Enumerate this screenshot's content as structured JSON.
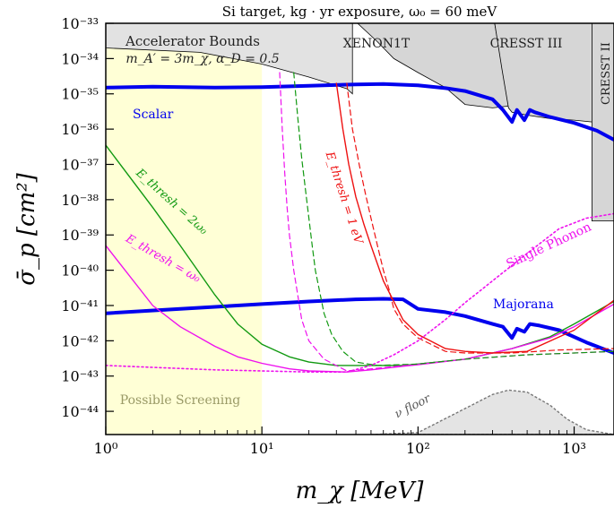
{
  "chart_data": {
    "type": "line",
    "title": "Si target, kg · yr exposure,  ω₀ = 60 meV",
    "xlabel": "m_χ  [MeV]",
    "ylabel": "σ̄_p  [cm²]",
    "xscale": "log",
    "yscale": "log",
    "xlim": [
      1,
      1800
    ],
    "ylim": [
      2.2e-45,
      1e-33
    ],
    "x_ticks": [
      {
        "value": 1,
        "label": "10⁰"
      },
      {
        "value": 10,
        "label": "10¹"
      },
      {
        "value": 100,
        "label": "10²"
      },
      {
        "value": 1000,
        "label": "10³"
      }
    ],
    "y_ticks": [
      {
        "value": 1e-33,
        "label": "10⁻³³"
      },
      {
        "value": 1e-34,
        "label": "10⁻³⁴"
      },
      {
        "value": 1e-35,
        "label": "10⁻³⁵"
      },
      {
        "value": 1e-36,
        "label": "10⁻³⁶"
      },
      {
        "value": 1e-37,
        "label": "10⁻³⁷"
      },
      {
        "value": 1e-38,
        "label": "10⁻³⁸"
      },
      {
        "value": 1e-39,
        "label": "10⁻³⁹"
      },
      {
        "value": 1e-40,
        "label": "10⁻⁴⁰"
      },
      {
        "value": 1e-41,
        "label": "10⁻⁴¹"
      },
      {
        "value": 1e-42,
        "label": "10⁻⁴²"
      },
      {
        "value": 1e-43,
        "label": "10⁻⁴³"
      },
      {
        "value": 1e-44,
        "label": "10⁻⁴⁴"
      }
    ],
    "regions": [
      {
        "name": "Accelerator Bounds",
        "sublabel": "m_A′ = 3m_χ, α_D = 0.5",
        "fill": "#e2e2e2",
        "x": [
          1,
          1,
          4,
          10,
          20,
          35,
          38,
          38,
          1
        ],
        "y": [
          1e-33,
          2e-34,
          1.5e-34,
          7e-35,
          3e-35,
          1.4e-35,
          1e-35,
          1e-33,
          1e-33
        ]
      },
      {
        "name": "XENON1T",
        "fill": "#d6d6d6",
        "x": [
          41,
          55,
          70,
          100,
          150,
          200,
          300,
          380,
          340,
          310,
          41
        ],
        "y": [
          1e-33,
          3e-34,
          1e-34,
          4e-35,
          1.5e-35,
          5e-36,
          4e-36,
          4.5e-36,
          1e-34,
          1e-33,
          1e-33
        ]
      },
      {
        "name": "CRESST III",
        "fill": "#d6d6d6",
        "x": [
          310,
          345,
          380,
          400,
          500,
          700,
          1000,
          1300,
          1400,
          1800,
          1800,
          310
        ],
        "y": [
          1e-33,
          5e-35,
          4e-36,
          3e-36,
          2.5e-36,
          2e-36,
          1.8e-36,
          1.6e-36,
          8e-39,
          2.5e-39,
          1e-33,
          1e-33
        ]
      },
      {
        "name": "CRESST II",
        "fill": "#d6d6d6",
        "x": [
          1300,
          1800,
          1800,
          1300
        ],
        "y": [
          1e-33,
          1e-33,
          2.5e-39,
          2.5e-39
        ]
      },
      {
        "name": "Possible Screening",
        "fill": "#ffffd6",
        "x": [
          1,
          10,
          10,
          1
        ],
        "y": [
          2.2e-45,
          2.2e-45,
          1e-33,
          1e-33
        ]
      },
      {
        "name": "ν floor",
        "fill": "#e4e4e4",
        "x": [
          50,
          100,
          200,
          300,
          380,
          500,
          700,
          900,
          1200,
          1800,
          1800,
          50
        ],
        "y": [
          2.2e-45,
          2.5e-45,
          1.2e-44,
          3e-44,
          4e-44,
          3.5e-44,
          1.5e-44,
          6e-45,
          3e-45,
          2.2e-45,
          2.2e-45,
          2.2e-45
        ]
      }
    ],
    "series": [
      {
        "name": "Scalar",
        "color": "#0000ee",
        "dash": "solid",
        "width": 4,
        "x": [
          1,
          2,
          5,
          10,
          20,
          40,
          60,
          100,
          150,
          200,
          300,
          350,
          400,
          430,
          480,
          520,
          560,
          700,
          1000,
          1400,
          1800
        ],
        "y": [
          1.5e-35,
          1.6e-35,
          1.5e-35,
          1.55e-35,
          1.7e-35,
          1.85e-35,
          1.9e-35,
          1.75e-35,
          1.45e-35,
          1.2e-35,
          7e-36,
          3.5e-36,
          1.6e-36,
          3.5e-36,
          1.8e-36,
          3.5e-36,
          3e-36,
          2.2e-36,
          1.5e-36,
          9e-37,
          5e-37
        ]
      },
      {
        "name": "Majorana",
        "color": "#0000ee",
        "dash": "solid",
        "width": 4,
        "x": [
          1,
          3,
          10,
          20,
          40,
          60,
          80,
          100,
          150,
          200,
          300,
          350,
          400,
          430,
          480,
          520,
          600,
          800,
          1200,
          1800
        ],
        "y": [
          6e-42,
          8e-42,
          1.1e-41,
          1.3e-41,
          1.5e-41,
          1.55e-41,
          1.5e-41,
          8e-42,
          6.5e-42,
          5e-42,
          3e-42,
          2.5e-42,
          1.2e-42,
          2.2e-42,
          1.8e-42,
          3e-42,
          2.7e-42,
          2e-42,
          9e-43,
          4.5e-43
        ]
      },
      {
        "name": "E_thresh = 2ω₀",
        "color": "#119911",
        "dash": "solid",
        "width": 1.4,
        "x": [
          1,
          2,
          3,
          5,
          7,
          10,
          15,
          20,
          30,
          50,
          80,
          100,
          200,
          400,
          700,
          1000,
          1800
        ],
        "y": [
          3.5e-37,
          6e-39,
          5e-40,
          2e-41,
          3e-42,
          8e-43,
          3.5e-43,
          2.5e-43,
          2e-43,
          2e-43,
          2e-43,
          2.2e-43,
          3e-43,
          6e-43,
          1.3e-42,
          3e-42,
          1.3e-41
        ]
      },
      {
        "name": "E_thresh = ω₀",
        "color": "#ee11ee",
        "dash": "solid",
        "width": 1.4,
        "x": [
          1,
          2,
          3,
          5,
          7,
          10,
          15,
          20,
          35,
          50,
          80,
          100,
          200,
          400,
          700,
          1000,
          1800
        ],
        "y": [
          5e-40,
          1e-41,
          2.5e-42,
          7e-43,
          3.5e-43,
          2.3e-43,
          1.6e-43,
          1.4e-43,
          1.3e-43,
          1.5e-43,
          1.9e-43,
          2.1e-43,
          3e-43,
          6e-43,
          1.2e-42,
          2.5e-42,
          1.1e-41
        ]
      },
      {
        "name": "E_thresh = 1 eV",
        "color": "#ee1111",
        "dash": "solid",
        "width": 1.4,
        "x": [
          30,
          33,
          36,
          40,
          45,
          50,
          60,
          80,
          100,
          150,
          200,
          300,
          500,
          1000,
          1800
        ],
        "y": [
          2e-35,
          1e-36,
          1e-37,
          1.2e-38,
          2e-39,
          5e-40,
          5e-41,
          4e-42,
          1.5e-42,
          6e-43,
          5e-43,
          4.5e-43,
          5e-43,
          2e-42,
          1.4e-41
        ]
      },
      {
        "name": "1 eV (dashed)",
        "color": "#ee1111",
        "dash": "dashed",
        "width": 1.2,
        "x": [
          35,
          38,
          42,
          46,
          50,
          55,
          60,
          65,
          70,
          80,
          100,
          150,
          200,
          400,
          800,
          1800
        ],
        "y": [
          2e-35,
          1e-36,
          1e-37,
          1.5e-38,
          3e-39,
          5e-40,
          1e-40,
          3e-41,
          8e-42,
          3e-42,
          1.2e-42,
          5e-43,
          4.5e-43,
          4.5e-43,
          5.5e-43,
          6e-43
        ]
      },
      {
        "name": "magenta dashed",
        "color": "#ee11ee",
        "dash": "dashed",
        "width": 1.2,
        "x": [
          13,
          13.5,
          14,
          14.5,
          15,
          16,
          18,
          20,
          25,
          35,
          50,
          100,
          200,
          500,
          1000,
          1800
        ],
        "y": [
          4e-35,
          1e-36,
          6e-38,
          6e-39,
          1e-39,
          1e-40,
          4e-42,
          1e-42,
          3e-43,
          1.4e-43,
          1.6e-43,
          2.2e-43,
          3e-43,
          4e-43,
          4.5e-43,
          5e-43
        ]
      },
      {
        "name": "green dashed",
        "color": "#119911",
        "dash": "dashed",
        "width": 1.2,
        "x": [
          16,
          17,
          18,
          19,
          20,
          21,
          22,
          25,
          28,
          33,
          40,
          55,
          100,
          200,
          500,
          1000,
          1800
        ],
        "y": [
          4e-35,
          2e-36,
          1.5e-37,
          2e-38,
          3e-39,
          5e-40,
          1e-40,
          6e-42,
          1.5e-42,
          5e-43,
          2.5e-43,
          2e-43,
          2.2e-43,
          3e-43,
          4e-43,
          4.5e-43,
          5e-43
        ]
      },
      {
        "name": "Single Phonon",
        "color": "#ee11ee",
        "dash": "dotted",
        "width": 1.6,
        "x": [
          1,
          5,
          10,
          20,
          35,
          50,
          70,
          100,
          150,
          200,
          300,
          500,
          800,
          1200,
          1800
        ],
        "y": [
          2e-43,
          1.5e-43,
          1.4e-43,
          1.3e-43,
          1.3e-43,
          2e-43,
          4e-43,
          1e-42,
          4e-42,
          1.2e-41,
          5e-41,
          3e-40,
          1.5e-39,
          3e-39,
          4e-39
        ]
      }
    ],
    "annotations": [
      {
        "text": "Accelerator Bounds",
        "color": "#222222"
      },
      {
        "text": "m_A′ = 3m_χ, α_D = 0.5",
        "color": "#222222"
      },
      {
        "text": "XENON1T",
        "color": "#222222"
      },
      {
        "text": "CRESST III",
        "color": "#222222"
      },
      {
        "text": "CRESST II",
        "color": "#222222"
      },
      {
        "text": "Scalar",
        "color": "#0000ee"
      },
      {
        "text": "Majorana",
        "color": "#0000ee"
      },
      {
        "text": "Single Phonon",
        "color": "#ee11ee"
      },
      {
        "text": "E_thresh = 2ω₀",
        "color": "#119911"
      },
      {
        "text": "E_thresh = ω₀",
        "color": "#ee11ee"
      },
      {
        "text": "E_thresh = 1 eV",
        "color": "#ee1111"
      },
      {
        "text": "Possible Screening",
        "color": "#999966"
      },
      {
        "text": "ν floor",
        "color": "#555555"
      }
    ],
    "grid": false,
    "legend": "none"
  }
}
